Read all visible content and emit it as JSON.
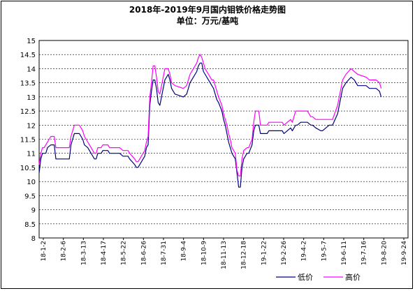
{
  "title": "2018年-2019年9月国内钼铁价格走势图",
  "subtitle": "单位：万元/基吨",
  "chart_data": {
    "type": "line",
    "ylim": [
      8,
      15
    ],
    "yticks": [
      "8",
      "8.5",
      "9",
      "9.5",
      "10",
      "10.5",
      "11",
      "11.5",
      "12",
      "12.5",
      "13",
      "13.5",
      "14",
      "14.5",
      "15"
    ],
    "categories": [
      "18-1-2",
      "18-2-6",
      "18-3-13",
      "18-4-17",
      "18-5-22",
      "18-6-26",
      "18-7-31",
      "18-9-4",
      "18-10-9",
      "18-11-13",
      "18-12-18",
      "19-1-22",
      "19-2-26",
      "19-4-2",
      "19-5-7",
      "19-6-11",
      "19-7-16",
      "19-8-20",
      "19-9-24"
    ],
    "grid": true,
    "legend_position": "bottom-right",
    "x_count": 221,
    "series": [
      {
        "name": "低价",
        "color": "#000080",
        "values": [
          [
            0,
            10.3
          ],
          [
            1,
            10.8
          ],
          [
            2,
            11.0
          ],
          [
            3,
            11.0
          ],
          [
            4,
            11.0
          ],
          [
            5,
            11.2
          ],
          [
            7,
            11.3
          ],
          [
            9,
            11.3
          ],
          [
            10,
            10.8
          ],
          [
            18,
            10.8
          ],
          [
            19,
            11.3
          ],
          [
            20,
            11.5
          ],
          [
            21,
            11.7
          ],
          [
            24,
            11.7
          ],
          [
            25,
            11.6
          ],
          [
            26,
            11.5
          ],
          [
            27,
            11.3
          ],
          [
            29,
            11.2
          ],
          [
            31,
            11.0
          ],
          [
            32,
            10.9
          ],
          [
            33,
            10.8
          ],
          [
            34,
            10.8
          ],
          [
            35,
            11.0
          ],
          [
            37,
            11.0
          ],
          [
            38,
            11.1
          ],
          [
            41,
            11.1
          ],
          [
            42,
            11.0
          ],
          [
            48,
            11.0
          ],
          [
            50,
            10.9
          ],
          [
            53,
            10.9
          ],
          [
            54,
            10.8
          ],
          [
            57,
            10.6
          ],
          [
            58,
            10.5
          ],
          [
            59,
            10.5
          ],
          [
            60,
            10.6
          ],
          [
            62,
            10.8
          ],
          [
            63,
            10.9
          ],
          [
            64,
            11.2
          ],
          [
            65,
            11.3
          ],
          [
            66,
            12.7
          ],
          [
            67,
            13.2
          ],
          [
            68,
            13.6
          ],
          [
            69,
            13.6
          ],
          [
            70,
            13.3
          ],
          [
            71,
            12.8
          ],
          [
            72,
            12.7
          ],
          [
            73,
            13.0
          ],
          [
            74,
            13.3
          ],
          [
            75,
            13.6
          ],
          [
            76,
            13.7
          ],
          [
            77,
            13.8
          ],
          [
            78,
            13.6
          ],
          [
            79,
            13.3
          ],
          [
            81,
            13.1
          ],
          [
            86,
            13.0
          ],
          [
            88,
            13.1
          ],
          [
            89,
            13.3
          ],
          [
            90,
            13.5
          ],
          [
            92,
            13.7
          ],
          [
            94,
            13.9
          ],
          [
            95,
            14.1
          ],
          [
            96,
            14.2
          ],
          [
            97,
            14.2
          ],
          [
            98,
            13.9
          ],
          [
            99,
            13.8
          ],
          [
            101,
            13.6
          ],
          [
            102,
            13.5
          ],
          [
            103,
            13.4
          ],
          [
            104,
            13.3
          ],
          [
            105,
            13.1
          ],
          [
            106,
            12.9
          ],
          [
            107,
            12.8
          ],
          [
            109,
            12.5
          ],
          [
            110,
            12.2
          ],
          [
            111,
            12.0
          ],
          [
            112,
            11.7
          ],
          [
            113,
            11.4
          ],
          [
            114,
            11.2
          ],
          [
            115,
            11.0
          ],
          [
            117,
            10.8
          ],
          [
            118,
            10.3
          ],
          [
            119,
            9.8
          ],
          [
            120,
            9.8
          ],
          [
            121,
            10.5
          ],
          [
            122,
            10.8
          ],
          [
            124,
            11.0
          ],
          [
            125,
            11.0
          ],
          [
            127,
            11.3
          ],
          [
            128,
            11.8
          ],
          [
            129,
            12.0
          ],
          [
            130,
            12.0
          ],
          [
            131,
            12.0
          ],
          [
            132,
            11.7
          ],
          [
            136,
            11.7
          ],
          [
            137,
            11.8
          ],
          [
            140,
            11.8
          ],
          [
            145,
            11.8
          ],
          [
            146,
            11.7
          ],
          [
            148,
            11.8
          ],
          [
            150,
            11.9
          ],
          [
            151,
            11.8
          ],
          [
            153,
            12.0
          ],
          [
            154,
            12.0
          ],
          [
            156,
            12.1
          ],
          [
            157,
            12.1
          ],
          [
            160,
            12.1
          ],
          [
            162,
            12.0
          ],
          [
            163,
            12.0
          ],
          [
            165,
            11.9
          ],
          [
            168,
            11.8
          ],
          [
            169,
            11.8
          ],
          [
            171,
            11.9
          ],
          [
            173,
            12.0
          ],
          [
            175,
            12.0
          ],
          [
            178,
            12.4
          ],
          [
            180,
            13.0
          ],
          [
            181,
            13.3
          ],
          [
            183,
            13.5
          ],
          [
            186,
            13.7
          ],
          [
            188,
            13.6
          ],
          [
            190,
            13.4
          ],
          [
            195,
            13.4
          ],
          [
            197,
            13.3
          ],
          [
            200,
            13.3
          ],
          [
            201,
            13.3
          ],
          [
            203,
            13.2
          ],
          [
            204,
            13.0
          ]
        ]
      },
      {
        "name": "高价",
        "color": "#ff00ff",
        "values": [
          [
            0,
            10.6
          ],
          [
            1,
            11.0
          ],
          [
            2,
            11.2
          ],
          [
            3,
            11.2
          ],
          [
            4,
            11.3
          ],
          [
            5,
            11.4
          ],
          [
            7,
            11.6
          ],
          [
            9,
            11.6
          ],
          [
            10,
            11.2
          ],
          [
            18,
            11.2
          ],
          [
            19,
            11.6
          ],
          [
            20,
            11.8
          ],
          [
            21,
            12.0
          ],
          [
            24,
            12.0
          ],
          [
            25,
            11.9
          ],
          [
            26,
            11.8
          ],
          [
            27,
            11.6
          ],
          [
            29,
            11.4
          ],
          [
            31,
            11.2
          ],
          [
            32,
            11.1
          ],
          [
            33,
            11.0
          ],
          [
            34,
            11.0
          ],
          [
            35,
            11.2
          ],
          [
            37,
            11.2
          ],
          [
            38,
            11.3
          ],
          [
            41,
            11.3
          ],
          [
            42,
            11.2
          ],
          [
            48,
            11.2
          ],
          [
            50,
            11.1
          ],
          [
            53,
            11.1
          ],
          [
            54,
            11.0
          ],
          [
            57,
            10.8
          ],
          [
            58,
            10.7
          ],
          [
            59,
            10.7
          ],
          [
            60,
            10.8
          ],
          [
            62,
            11.0
          ],
          [
            63,
            11.1
          ],
          [
            64,
            11.4
          ],
          [
            65,
            11.6
          ],
          [
            66,
            13.0
          ],
          [
            67,
            13.5
          ],
          [
            68,
            14.1
          ],
          [
            69,
            14.1
          ],
          [
            70,
            13.7
          ],
          [
            71,
            13.2
          ],
          [
            72,
            13.1
          ],
          [
            73,
            13.4
          ],
          [
            74,
            13.7
          ],
          [
            75,
            14.0
          ],
          [
            76,
            14.0
          ],
          [
            77,
            14.0
          ],
          [
            78,
            13.8
          ],
          [
            79,
            13.5
          ],
          [
            81,
            13.4
          ],
          [
            86,
            13.3
          ],
          [
            88,
            13.4
          ],
          [
            89,
            13.6
          ],
          [
            90,
            13.8
          ],
          [
            92,
            14.0
          ],
          [
            94,
            14.2
          ],
          [
            95,
            14.4
          ],
          [
            96,
            14.5
          ],
          [
            97,
            14.4
          ],
          [
            98,
            14.2
          ],
          [
            99,
            14.0
          ],
          [
            101,
            13.8
          ],
          [
            102,
            13.7
          ],
          [
            103,
            13.6
          ],
          [
            104,
            13.6
          ],
          [
            105,
            13.4
          ],
          [
            106,
            13.2
          ],
          [
            107,
            13.0
          ],
          [
            109,
            12.7
          ],
          [
            110,
            12.4
          ],
          [
            111,
            12.2
          ],
          [
            112,
            12.0
          ],
          [
            113,
            11.7
          ],
          [
            114,
            11.5
          ],
          [
            115,
            11.2
          ],
          [
            117,
            11.0
          ],
          [
            118,
            10.4
          ],
          [
            119,
            10.2
          ],
          [
            120,
            10.2
          ],
          [
            121,
            10.8
          ],
          [
            122,
            11.1
          ],
          [
            124,
            11.2
          ],
          [
            125,
            11.2
          ],
          [
            127,
            11.5
          ],
          [
            128,
            12.1
          ],
          [
            129,
            12.5
          ],
          [
            130,
            12.5
          ],
          [
            131,
            12.5
          ],
          [
            132,
            12.0
          ],
          [
            136,
            12.0
          ],
          [
            137,
            12.1
          ],
          [
            140,
            12.1
          ],
          [
            145,
            12.1
          ],
          [
            146,
            12.0
          ],
          [
            148,
            12.1
          ],
          [
            150,
            12.2
          ],
          [
            151,
            12.1
          ],
          [
            153,
            12.5
          ],
          [
            154,
            12.5
          ],
          [
            156,
            12.5
          ],
          [
            157,
            12.5
          ],
          [
            160,
            12.5
          ],
          [
            162,
            12.3
          ],
          [
            163,
            12.3
          ],
          [
            165,
            12.2
          ],
          [
            168,
            12.2
          ],
          [
            169,
            12.2
          ],
          [
            171,
            12.2
          ],
          [
            173,
            12.2
          ],
          [
            175,
            12.2
          ],
          [
            178,
            12.7
          ],
          [
            180,
            13.3
          ],
          [
            181,
            13.6
          ],
          [
            183,
            13.8
          ],
          [
            186,
            14.0
          ],
          [
            188,
            13.9
          ],
          [
            190,
            13.8
          ],
          [
            195,
            13.7
          ],
          [
            197,
            13.6
          ],
          [
            200,
            13.6
          ],
          [
            201,
            13.6
          ],
          [
            203,
            13.5
          ],
          [
            204,
            13.3
          ]
        ]
      }
    ]
  }
}
